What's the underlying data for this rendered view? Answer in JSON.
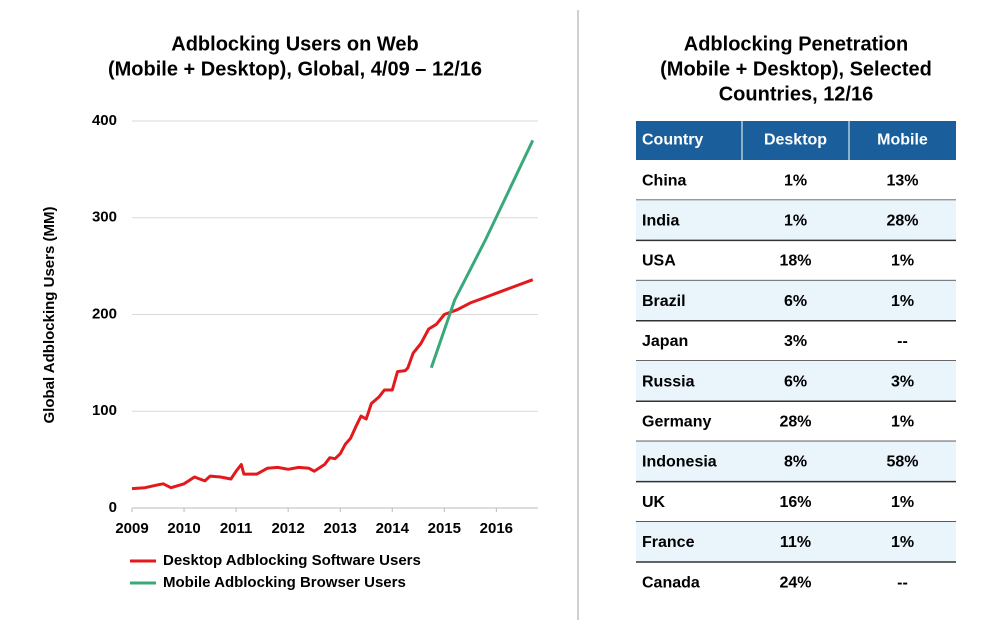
{
  "chart_data": {
    "type": "line",
    "title": [
      "Adblocking Users on Web",
      "(Mobile + Desktop), Global, 4/09 – 12/16"
    ],
    "y_label": "Global Adblocking Users (MM)",
    "xlim": [
      2009,
      2016.8
    ],
    "xticks": [
      2009,
      2010,
      2011,
      2012,
      2013,
      2014,
      2015,
      2016
    ],
    "ylim": [
      0,
      400
    ],
    "yticks": [
      0,
      100,
      200,
      300,
      400
    ],
    "grid": true,
    "legend": "bottom",
    "series": [
      {
        "name": "Desktop Adblocking Software Users",
        "color": "#e3191c",
        "x": [
          2009.0,
          2009.25,
          2009.5,
          2009.6,
          2009.75,
          2010.0,
          2010.2,
          2010.3,
          2010.4,
          2010.5,
          2010.7,
          2010.9,
          2011.0,
          2011.1,
          2011.15,
          2011.4,
          2011.6,
          2011.8,
          2012.0,
          2012.2,
          2012.4,
          2012.5,
          2012.7,
          2012.8,
          2012.9,
          2013.0,
          2013.1,
          2013.2,
          2013.3,
          2013.4,
          2013.5,
          2013.6,
          2013.75,
          2013.85,
          2014.0,
          2014.1,
          2014.25,
          2014.3,
          2014.4,
          2014.55,
          2014.7,
          2014.85,
          2015.0,
          2015.25,
          2015.5,
          2015.75,
          2016.0,
          2016.3,
          2016.7
        ],
        "values": [
          20,
          21,
          24,
          25,
          21,
          25,
          32,
          30,
          28,
          33,
          32,
          30,
          38,
          45,
          35,
          35,
          41,
          42,
          40,
          42,
          41,
          38,
          45,
          52,
          51,
          56,
          66,
          72,
          84,
          95,
          92,
          108,
          115,
          122,
          122,
          141,
          142,
          145,
          160,
          170,
          185,
          190,
          200,
          205,
          212,
          217,
          222,
          228,
          236
        ]
      },
      {
        "name": "Mobile Adblocking Browser Users",
        "color": "#3aa97a",
        "x": [
          2014.75,
          2015.2,
          2015.8,
          2016.7
        ],
        "values": [
          145,
          215,
          278,
          380
        ]
      }
    ]
  },
  "table": {
    "title": [
      "Adblocking Penetration",
      "(Mobile + Desktop), Selected",
      "Countries, 12/16"
    ],
    "header": [
      "Country",
      "Desktop",
      "Mobile"
    ],
    "rows": [
      [
        "China",
        "1%",
        "13%"
      ],
      [
        "India",
        "1%",
        "28%"
      ],
      [
        "USA",
        "18%",
        "1%"
      ],
      [
        "Brazil",
        "6%",
        "1%"
      ],
      [
        "Japan",
        "3%",
        "--"
      ],
      [
        "Russia",
        "6%",
        "3%"
      ],
      [
        "Germany",
        "28%",
        "1%"
      ],
      [
        "Indonesia",
        "8%",
        "58%"
      ],
      [
        "UK",
        "16%",
        "1%"
      ],
      [
        "France",
        "11%",
        "1%"
      ],
      [
        "Canada",
        "24%",
        "--"
      ]
    ]
  }
}
